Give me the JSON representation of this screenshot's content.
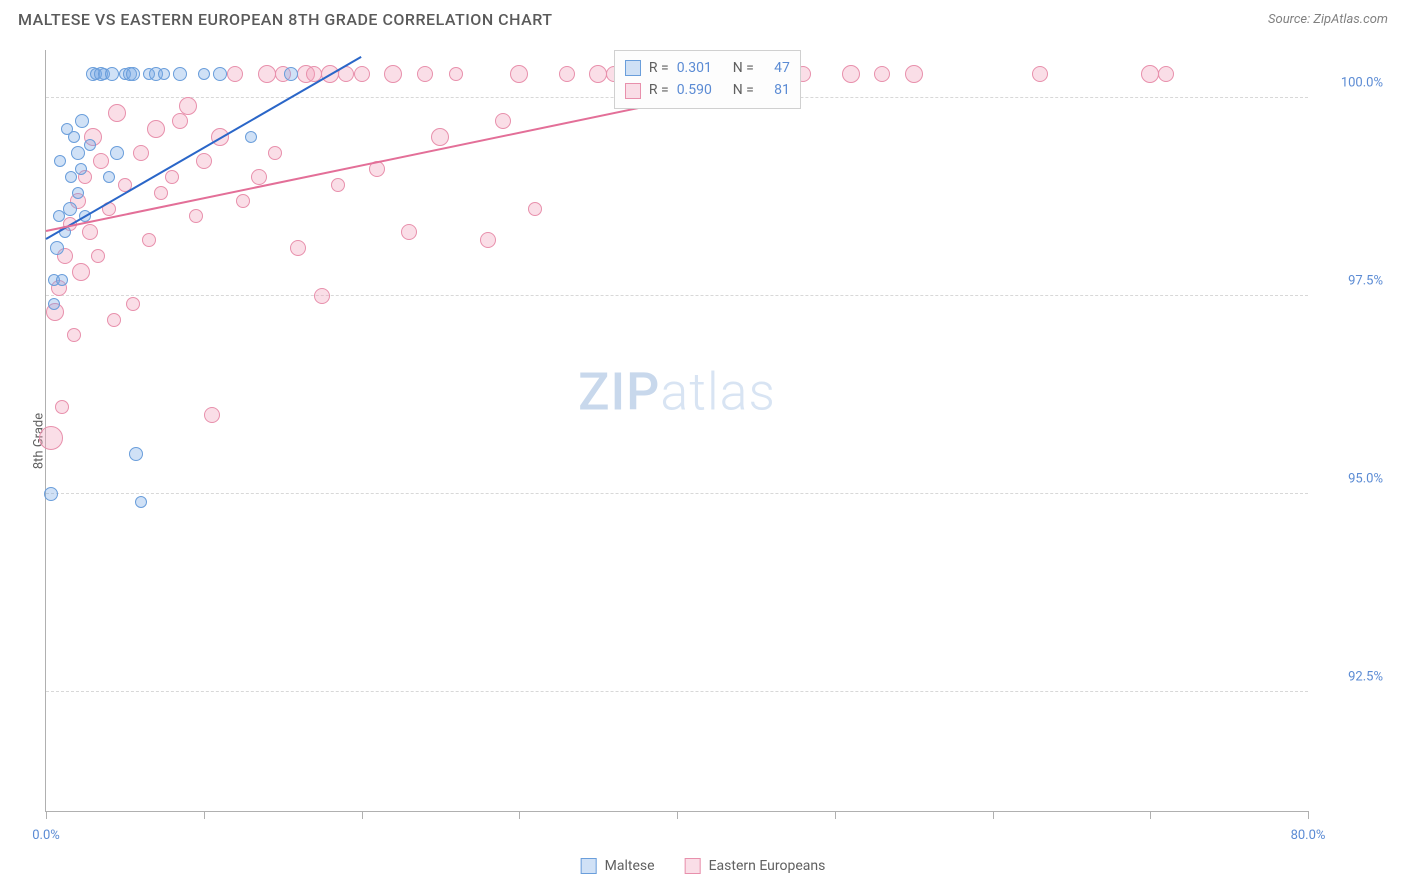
{
  "header": {
    "title": "MALTESE VS EASTERN EUROPEAN 8TH GRADE CORRELATION CHART",
    "source": "Source: ZipAtlas.com"
  },
  "chart": {
    "type": "scatter",
    "yaxis_title": "8th Grade",
    "watermark_a": "ZIP",
    "watermark_b": "atlas",
    "xlim": [
      0,
      80
    ],
    "ylim": [
      91,
      100.6
    ],
    "xticks": [
      0,
      10,
      20,
      30,
      40,
      50,
      60,
      70,
      80
    ],
    "xtick_labels": {
      "0": "0.0%",
      "80": "80.0%"
    },
    "yticks": [
      92.5,
      95.0,
      97.5,
      100.0
    ],
    "ytick_labels": [
      "92.5%",
      "95.0%",
      "97.5%",
      "100.0%"
    ],
    "grid_color": "#d8d8d8",
    "axis_color": "#b0b0b0",
    "background_color": "#ffffff",
    "label_color": "#5b8bd4",
    "series": [
      {
        "name": "Maltese",
        "fill": "rgba(120,170,230,0.35)",
        "stroke": "#6a9edb",
        "trend_color": "#2a66c8",
        "trend": {
          "x1": 0,
          "y1": 98.2,
          "x2": 20,
          "y2": 100.5
        },
        "R": "0.301",
        "N": "47",
        "points": [
          {
            "x": 0.3,
            "y": 95.0,
            "r": 7
          },
          {
            "x": 0.5,
            "y": 97.7,
            "r": 6
          },
          {
            "x": 0.5,
            "y": 97.4,
            "r": 6
          },
          {
            "x": 0.7,
            "y": 98.1,
            "r": 7
          },
          {
            "x": 0.8,
            "y": 98.5,
            "r": 6
          },
          {
            "x": 0.9,
            "y": 99.2,
            "r": 6
          },
          {
            "x": 1.0,
            "y": 97.7,
            "r": 6
          },
          {
            "x": 1.2,
            "y": 98.3,
            "r": 6
          },
          {
            "x": 1.3,
            "y": 99.6,
            "r": 6
          },
          {
            "x": 1.5,
            "y": 98.6,
            "r": 7
          },
          {
            "x": 1.6,
            "y": 99.0,
            "r": 6
          },
          {
            "x": 1.8,
            "y": 99.5,
            "r": 6
          },
          {
            "x": 2.0,
            "y": 98.8,
            "r": 6
          },
          {
            "x": 2.0,
            "y": 99.3,
            "r": 7
          },
          {
            "x": 2.2,
            "y": 99.1,
            "r": 6
          },
          {
            "x": 2.3,
            "y": 99.7,
            "r": 7
          },
          {
            "x": 2.5,
            "y": 98.5,
            "r": 6
          },
          {
            "x": 2.8,
            "y": 99.4,
            "r": 6
          },
          {
            "x": 3.0,
            "y": 100.3,
            "r": 7
          },
          {
            "x": 3.2,
            "y": 100.3,
            "r": 6
          },
          {
            "x": 3.5,
            "y": 100.3,
            "r": 7
          },
          {
            "x": 3.7,
            "y": 100.3,
            "r": 6
          },
          {
            "x": 4.0,
            "y": 99.0,
            "r": 6
          },
          {
            "x": 4.2,
            "y": 100.3,
            "r": 7
          },
          {
            "x": 4.5,
            "y": 99.3,
            "r": 7
          },
          {
            "x": 5.0,
            "y": 100.3,
            "r": 6
          },
          {
            "x": 5.3,
            "y": 100.3,
            "r": 7
          },
          {
            "x": 5.5,
            "y": 100.3,
            "r": 7
          },
          {
            "x": 5.7,
            "y": 95.5,
            "r": 7
          },
          {
            "x": 6.0,
            "y": 94.9,
            "r": 6
          },
          {
            "x": 6.5,
            "y": 100.3,
            "r": 6
          },
          {
            "x": 7.0,
            "y": 100.3,
            "r": 7
          },
          {
            "x": 7.5,
            "y": 100.3,
            "r": 6
          },
          {
            "x": 8.5,
            "y": 100.3,
            "r": 7
          },
          {
            "x": 10.0,
            "y": 100.3,
            "r": 6
          },
          {
            "x": 11.0,
            "y": 100.3,
            "r": 7
          },
          {
            "x": 13.0,
            "y": 99.5,
            "r": 6
          },
          {
            "x": 15.5,
            "y": 100.3,
            "r": 7
          }
        ]
      },
      {
        "name": "Eastern Europeans",
        "fill": "rgba(240,160,185,0.35)",
        "stroke": "#e890ac",
        "trend_color": "#e36f98",
        "trend": {
          "x1": 0,
          "y1": 98.3,
          "x2": 46,
          "y2": 100.2
        },
        "R": "0.590",
        "N": "81",
        "points": [
          {
            "x": 0.3,
            "y": 95.7,
            "r": 12
          },
          {
            "x": 0.6,
            "y": 97.3,
            "r": 9
          },
          {
            "x": 0.8,
            "y": 97.6,
            "r": 8
          },
          {
            "x": 1.0,
            "y": 96.1,
            "r": 7
          },
          {
            "x": 1.2,
            "y": 98.0,
            "r": 8
          },
          {
            "x": 1.5,
            "y": 98.4,
            "r": 7
          },
          {
            "x": 1.8,
            "y": 97.0,
            "r": 7
          },
          {
            "x": 2.0,
            "y": 98.7,
            "r": 8
          },
          {
            "x": 2.2,
            "y": 97.8,
            "r": 9
          },
          {
            "x": 2.5,
            "y": 99.0,
            "r": 7
          },
          {
            "x": 2.8,
            "y": 98.3,
            "r": 8
          },
          {
            "x": 3.0,
            "y": 99.5,
            "r": 9
          },
          {
            "x": 3.3,
            "y": 98.0,
            "r": 7
          },
          {
            "x": 3.5,
            "y": 99.2,
            "r": 8
          },
          {
            "x": 4.0,
            "y": 98.6,
            "r": 7
          },
          {
            "x": 4.3,
            "y": 97.2,
            "r": 7
          },
          {
            "x": 4.5,
            "y": 99.8,
            "r": 9
          },
          {
            "x": 5.0,
            "y": 98.9,
            "r": 7
          },
          {
            "x": 5.5,
            "y": 97.4,
            "r": 7
          },
          {
            "x": 6.0,
            "y": 99.3,
            "r": 8
          },
          {
            "x": 6.5,
            "y": 98.2,
            "r": 7
          },
          {
            "x": 7.0,
            "y": 99.6,
            "r": 9
          },
          {
            "x": 7.3,
            "y": 98.8,
            "r": 7
          },
          {
            "x": 8.0,
            "y": 99.0,
            "r": 7
          },
          {
            "x": 8.5,
            "y": 99.7,
            "r": 8
          },
          {
            "x": 9.0,
            "y": 99.9,
            "r": 9
          },
          {
            "x": 9.5,
            "y": 98.5,
            "r": 7
          },
          {
            "x": 10.0,
            "y": 99.2,
            "r": 8
          },
          {
            "x": 10.5,
            "y": 96.0,
            "r": 8
          },
          {
            "x": 11.0,
            "y": 99.5,
            "r": 9
          },
          {
            "x": 12.0,
            "y": 100.3,
            "r": 8
          },
          {
            "x": 12.5,
            "y": 98.7,
            "r": 7
          },
          {
            "x": 13.5,
            "y": 99.0,
            "r": 8
          },
          {
            "x": 14.0,
            "y": 100.3,
            "r": 9
          },
          {
            "x": 14.5,
            "y": 99.3,
            "r": 7
          },
          {
            "x": 15.0,
            "y": 100.3,
            "r": 8
          },
          {
            "x": 16.0,
            "y": 98.1,
            "r": 8
          },
          {
            "x": 16.5,
            "y": 100.3,
            "r": 9
          },
          {
            "x": 17.0,
            "y": 100.3,
            "r": 8
          },
          {
            "x": 17.5,
            "y": 97.5,
            "r": 8
          },
          {
            "x": 18.0,
            "y": 100.3,
            "r": 9
          },
          {
            "x": 18.5,
            "y": 98.9,
            "r": 7
          },
          {
            "x": 19.0,
            "y": 100.3,
            "r": 8
          },
          {
            "x": 20.0,
            "y": 100.3,
            "r": 8
          },
          {
            "x": 21.0,
            "y": 99.1,
            "r": 8
          },
          {
            "x": 22.0,
            "y": 100.3,
            "r": 9
          },
          {
            "x": 23.0,
            "y": 98.3,
            "r": 8
          },
          {
            "x": 24.0,
            "y": 100.3,
            "r": 8
          },
          {
            "x": 25.0,
            "y": 99.5,
            "r": 9
          },
          {
            "x": 26.0,
            "y": 100.3,
            "r": 7
          },
          {
            "x": 28.0,
            "y": 98.2,
            "r": 8
          },
          {
            "x": 29.0,
            "y": 99.7,
            "r": 8
          },
          {
            "x": 30.0,
            "y": 100.3,
            "r": 9
          },
          {
            "x": 31.0,
            "y": 98.6,
            "r": 7
          },
          {
            "x": 33.0,
            "y": 100.3,
            "r": 8
          },
          {
            "x": 35.0,
            "y": 100.3,
            "r": 9
          },
          {
            "x": 36.0,
            "y": 100.3,
            "r": 8
          },
          {
            "x": 38.0,
            "y": 100.3,
            "r": 8
          },
          {
            "x": 41.0,
            "y": 100.3,
            "r": 9
          },
          {
            "x": 44.0,
            "y": 100.3,
            "r": 8
          },
          {
            "x": 46.0,
            "y": 100.3,
            "r": 9
          },
          {
            "x": 48.0,
            "y": 100.3,
            "r": 8
          },
          {
            "x": 51.0,
            "y": 100.3,
            "r": 9
          },
          {
            "x": 53.0,
            "y": 100.3,
            "r": 8
          },
          {
            "x": 55.0,
            "y": 100.3,
            "r": 9
          },
          {
            "x": 63.0,
            "y": 100.3,
            "r": 8
          },
          {
            "x": 70.0,
            "y": 100.3,
            "r": 9
          },
          {
            "x": 71.0,
            "y": 100.3,
            "r": 8
          }
        ]
      }
    ],
    "correlation_legend": {
      "r_label": "R =",
      "n_label": "N ="
    },
    "bottom_legend_labels": [
      "Maltese",
      "Eastern Europeans"
    ]
  }
}
